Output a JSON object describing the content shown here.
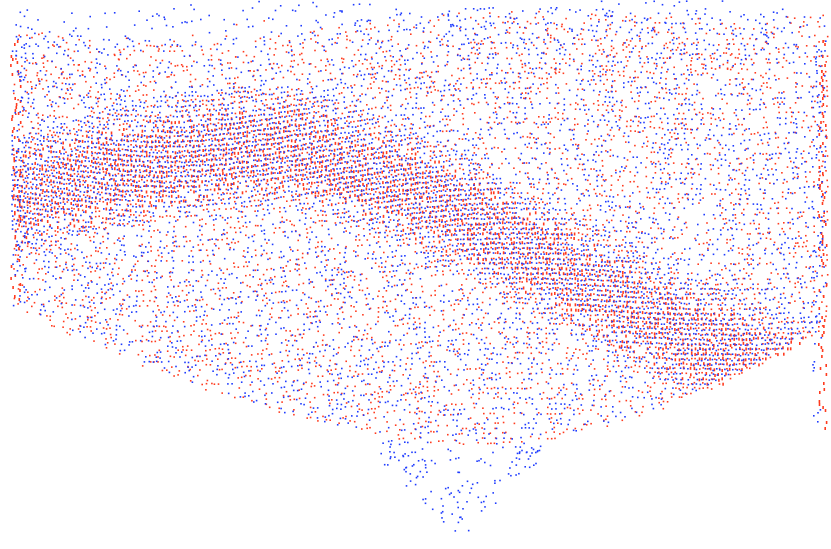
{
  "scene": {
    "subject": "point-cloud-registration-overlay",
    "background_color": "#ffffff",
    "clouds": [
      {
        "id": "source-cloud",
        "color": "#ff3b1f"
      },
      {
        "id": "target-cloud",
        "color": "#1f3cff"
      }
    ]
  }
}
